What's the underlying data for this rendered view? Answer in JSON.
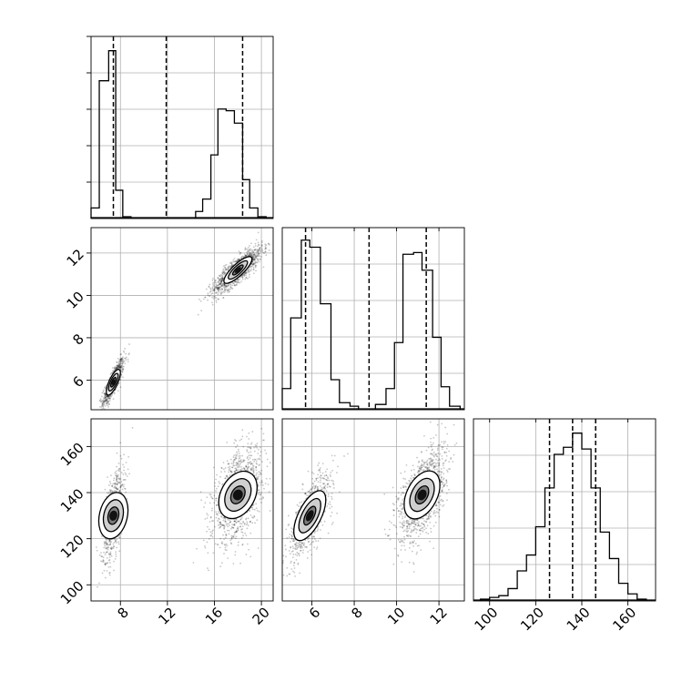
{
  "chart_data": {
    "type": "corner",
    "parameters": [
      {
        "range": [
          5.5,
          21
        ],
        "ticks": [
          8,
          12,
          16,
          20
        ],
        "quantiles": [
          7.4,
          11.9,
          18.4
        ],
        "tick_labels": [
          "8",
          "12",
          "16",
          "20"
        ]
      },
      {
        "range": [
          4.6,
          13.2
        ],
        "ticks": [
          6,
          8,
          10,
          12
        ],
        "quantiles": [
          5.7,
          8.7,
          11.4
        ],
        "tick_labels": [
          "6",
          "8",
          "10",
          "12"
        ]
      },
      {
        "range": [
          93,
          172
        ],
        "ticks": [
          100,
          120,
          140,
          160
        ],
        "quantiles": [
          126,
          136,
          146
        ],
        "tick_labels": [
          "100",
          "120",
          "140",
          "160"
        ]
      }
    ],
    "histograms": [
      {
        "parameter": 0,
        "bins": [
          [
            5.5,
            6.2,
            0.06
          ],
          [
            6.2,
            7.0,
            0.78
          ],
          [
            7.0,
            7.6,
            0.95
          ],
          [
            7.6,
            8.2,
            0.16
          ],
          [
            8.2,
            8.9,
            0.01
          ],
          [
            14.4,
            15.0,
            0.04
          ],
          [
            15.0,
            15.7,
            0.11
          ],
          [
            15.7,
            16.3,
            0.36
          ],
          [
            16.3,
            17.0,
            0.62
          ],
          [
            17.0,
            17.7,
            0.61
          ],
          [
            17.7,
            18.4,
            0.54
          ],
          [
            18.4,
            19.0,
            0.22
          ],
          [
            19.0,
            19.7,
            0.06
          ],
          [
            19.7,
            20.4,
            0.01
          ]
        ]
      },
      {
        "parameter": 1,
        "bins": [
          [
            4.6,
            5.0,
            0.12
          ],
          [
            5.0,
            5.5,
            0.52
          ],
          [
            5.5,
            5.9,
            0.96
          ],
          [
            5.9,
            6.4,
            0.92
          ],
          [
            6.4,
            6.9,
            0.6
          ],
          [
            6.9,
            7.3,
            0.17
          ],
          [
            7.3,
            7.8,
            0.04
          ],
          [
            7.8,
            8.2,
            0.02
          ],
          [
            9.0,
            9.5,
            0.03
          ],
          [
            9.5,
            9.9,
            0.12
          ],
          [
            9.9,
            10.3,
            0.38
          ],
          [
            10.3,
            10.8,
            0.88
          ],
          [
            10.8,
            11.2,
            0.89
          ],
          [
            11.2,
            11.7,
            0.79
          ],
          [
            11.7,
            12.1,
            0.41
          ],
          [
            12.1,
            12.5,
            0.13
          ],
          [
            12.5,
            13.0,
            0.02
          ]
        ]
      },
      {
        "parameter": 2,
        "bins": [
          [
            96,
            100,
            0.01
          ],
          [
            100,
            104,
            0.02
          ],
          [
            104,
            108,
            0.03
          ],
          [
            108,
            112,
            0.07
          ],
          [
            112,
            116,
            0.17
          ],
          [
            116,
            120,
            0.26
          ],
          [
            120,
            124,
            0.42
          ],
          [
            124,
            128,
            0.64
          ],
          [
            128,
            132,
            0.83
          ],
          [
            132,
            136,
            0.87
          ],
          [
            136,
            140,
            0.95
          ],
          [
            140,
            144,
            0.86
          ],
          [
            144,
            148,
            0.64
          ],
          [
            148,
            152,
            0.39
          ],
          [
            152,
            156,
            0.24
          ],
          [
            156,
            160,
            0.1
          ],
          [
            160,
            164,
            0.04
          ],
          [
            164,
            168,
            0.01
          ]
        ]
      }
    ],
    "clusters": [
      {
        "param": [
          0,
          1
        ],
        "center": [
          7.4,
          5.9
        ],
        "sd": [
          0.45,
          0.55
        ],
        "rho": 0.85,
        "n": 700
      },
      {
        "param": [
          0,
          1
        ],
        "center": [
          18.0,
          11.2
        ],
        "sd": [
          1.05,
          0.55
        ],
        "rho": 0.85,
        "n": 1200
      },
      {
        "param": [
          0,
          2
        ],
        "center": [
          7.4,
          130
        ],
        "sd": [
          0.45,
          10
        ],
        "rho": 0.55,
        "n": 700
      },
      {
        "param": [
          0,
          2
        ],
        "center": [
          18.0,
          139
        ],
        "sd": [
          1.05,
          10
        ],
        "rho": 0.45,
        "n": 1200
      },
      {
        "param": [
          1,
          2
        ],
        "center": [
          5.9,
          130
        ],
        "sd": [
          0.55,
          10
        ],
        "rho": 0.75,
        "n": 700
      },
      {
        "param": [
          1,
          2
        ],
        "center": [
          11.2,
          139
        ],
        "sd": [
          0.55,
          10
        ],
        "rho": 0.55,
        "n": 1200
      }
    ],
    "contour_levels": [
      0.5,
      1.0,
      1.5
    ],
    "grid": true
  }
}
